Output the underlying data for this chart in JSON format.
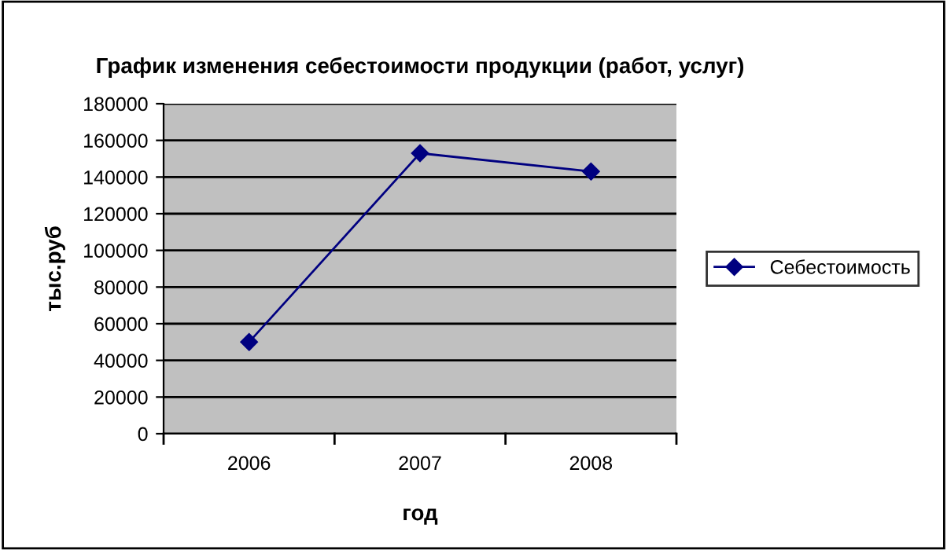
{
  "chart_data": {
    "type": "line",
    "title": "График изменения себестоимости продукции (работ, услуг)",
    "xlabel": "год",
    "ylabel": "тыс.руб",
    "categories": [
      "2006",
      "2007",
      "2008"
    ],
    "series": [
      {
        "name": "Себестоимость",
        "color": "#000080",
        "values": [
          50000,
          153000,
          143000
        ]
      }
    ],
    "ylim": [
      0,
      180000
    ],
    "yticks": [
      0,
      20000,
      40000,
      60000,
      80000,
      100000,
      120000,
      140000,
      160000,
      180000
    ],
    "grid": "y",
    "legend": "right",
    "marker": "diamond",
    "line_style": "solid"
  }
}
